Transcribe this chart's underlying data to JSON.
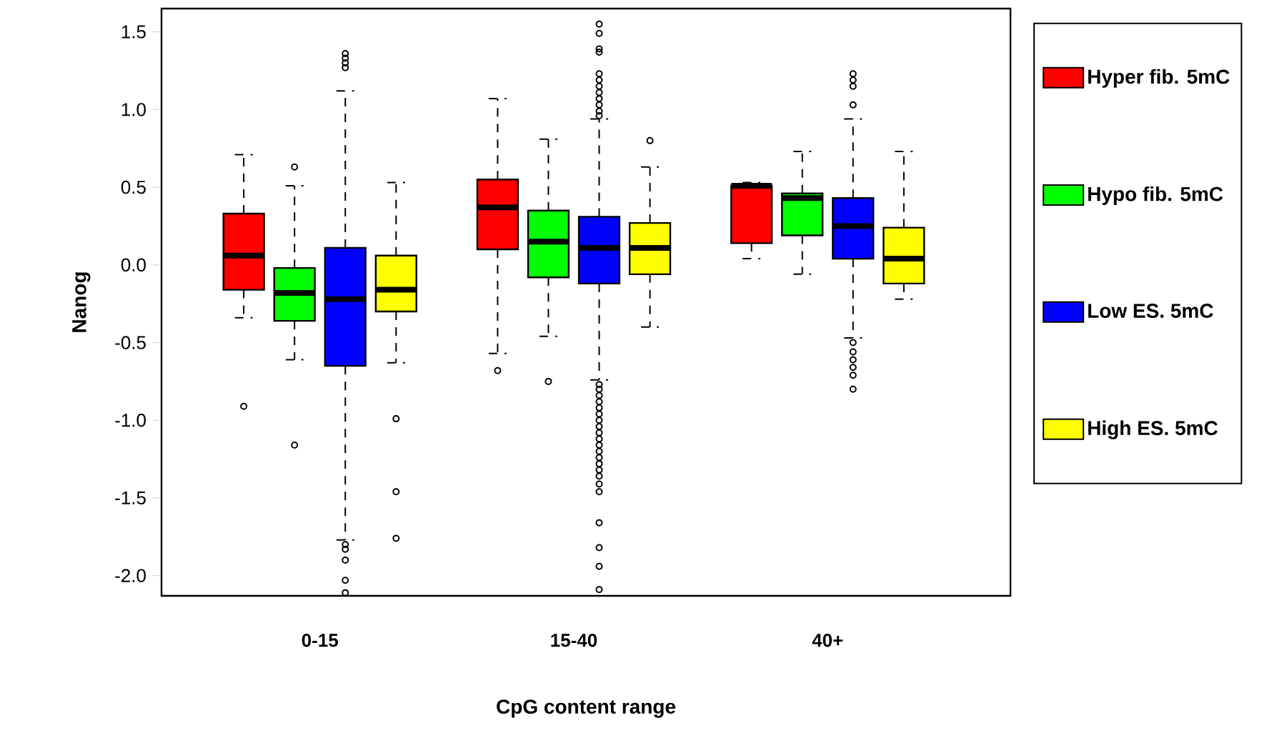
{
  "chart_data": {
    "type": "box",
    "xlabel": "CpG content range",
    "ylabel": "Nanog",
    "categories": [
      "0-15",
      "15-40",
      "40+"
    ],
    "ylim": [
      -2.13,
      1.65
    ],
    "yticks": [
      {
        "value": -2,
        "label": "-2.0"
      },
      {
        "value": -1.5,
        "label": "-1.5"
      },
      {
        "value": -1,
        "label": "-1.0"
      },
      {
        "value": -0.5,
        "label": "-0.5"
      },
      {
        "value": 0,
        "label": "0.0"
      },
      {
        "value": 0.5,
        "label": "0.5"
      },
      {
        "value": 1,
        "label": "1.0"
      },
      {
        "value": 1.5,
        "label": "1.5"
      }
    ],
    "legend": "right",
    "marker": "circle",
    "grid": false,
    "series": [
      {
        "name": "Hyper fib. 5mC",
        "color": "#ff0000",
        "boxes": [
          {
            "low": -0.34,
            "q1": -0.16,
            "median": 0.06,
            "q3": 0.33,
            "high": 0.71,
            "outliers": [
              -0.91
            ]
          },
          {
            "low": -0.57,
            "q1": 0.1,
            "median": 0.37,
            "q3": 0.55,
            "high": 1.07,
            "outliers": [
              -0.68
            ]
          },
          {
            "low": 0.04,
            "q1": 0.14,
            "median": 0.51,
            "q3": 0.51,
            "high": 0.53
          }
        ]
      },
      {
        "name": "Hypo fib. 5mC",
        "color": "#00ff00",
        "boxes": [
          {
            "low": -0.61,
            "q1": -0.36,
            "median": -0.18,
            "q3": -0.02,
            "high": 0.51,
            "outliers": [
              0.63,
              -1.16
            ]
          },
          {
            "low": -0.46,
            "q1": -0.08,
            "median": 0.15,
            "q3": 0.35,
            "high": 0.81,
            "outliers": [
              -0.75
            ]
          },
          {
            "low": -0.06,
            "q1": 0.19,
            "median": 0.43,
            "q3": 0.46,
            "high": 0.73
          }
        ]
      },
      {
        "name": "Low ES. 5mC",
        "color": "#0000ff",
        "boxes": [
          {
            "low": -1.77,
            "q1": -0.65,
            "median": -0.22,
            "q3": 0.11,
            "high": 1.12,
            "outliers": [
              1.36,
              1.33,
              1.3,
              1.27,
              -1.8,
              -1.83,
              -1.9,
              -2.03,
              -2.11
            ]
          },
          {
            "low": -0.74,
            "q1": -0.12,
            "median": 0.11,
            "q3": 0.31,
            "high": 0.94,
            "outliers": [
              1.55,
              1.49,
              1.39,
              1.37,
              1.23,
              1.19,
              1.15,
              1.11,
              1.07,
              1.03,
              0.99,
              0.96,
              -0.77,
              -0.8,
              -0.84,
              -0.88,
              -0.92,
              -0.96,
              -1.0,
              -1.04,
              -1.08,
              -1.12,
              -1.16,
              -1.2,
              -1.24,
              -1.28,
              -1.32,
              -1.36,
              -1.41,
              -1.46,
              -1.66,
              -1.82,
              -1.94,
              -2.09
            ]
          },
          {
            "low": -0.47,
            "q1": 0.04,
            "median": 0.25,
            "q3": 0.43,
            "high": 0.94,
            "outliers": [
              1.23,
              1.19,
              1.15,
              1.03,
              -0.5,
              -0.56,
              -0.61,
              -0.66,
              -0.71,
              -0.8
            ]
          }
        ]
      },
      {
        "name": "High ES. 5mC",
        "color": "#ffff00",
        "boxes": [
          {
            "low": -0.63,
            "q1": -0.3,
            "median": -0.16,
            "q3": 0.06,
            "high": 0.53,
            "outliers": [
              -0.99,
              -1.46,
              -1.76
            ]
          },
          {
            "low": -0.4,
            "q1": -0.06,
            "median": 0.11,
            "q3": 0.27,
            "high": 0.63,
            "outliers": [
              0.8
            ]
          },
          {
            "low": -0.22,
            "q1": -0.12,
            "median": 0.04,
            "q3": 0.24,
            "high": 0.73
          }
        ]
      }
    ]
  }
}
